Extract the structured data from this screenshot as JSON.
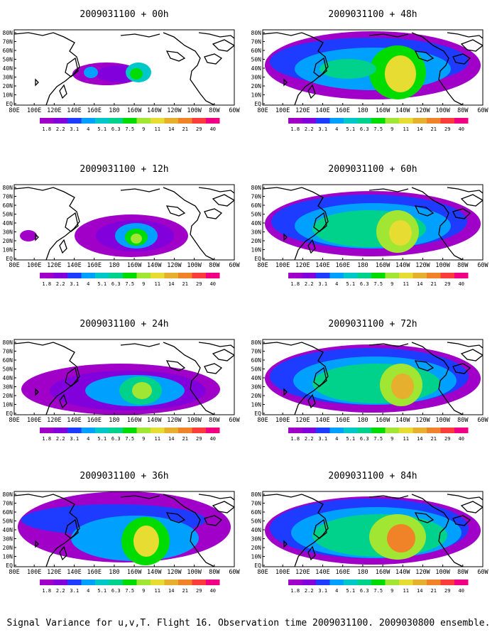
{
  "panels": [
    {
      "title": "2009031100 + 00h"
    },
    {
      "title": "2009031100 + 12h"
    },
    {
      "title": "2009031100 + 24h"
    },
    {
      "title": "2009031100 + 36h"
    },
    {
      "title": "2009031100 + 48h"
    },
    {
      "title": "2009031100 + 60h"
    },
    {
      "title": "2009031100 + 72h"
    },
    {
      "title": "2009031100 + 84h"
    }
  ],
  "lat_labels": [
    "80N",
    "70N",
    "60N",
    "50N",
    "40N",
    "30N",
    "20N",
    "10N",
    "EQ"
  ],
  "lon_labels": [
    "80E",
    "100E",
    "120E",
    "140E",
    "160E",
    "180",
    "160W",
    "140W",
    "120W",
    "100W",
    "80W",
    "60W"
  ],
  "legend": {
    "colors": [
      "#a000c8",
      "#8200dc",
      "#1e3cff",
      "#00a0ff",
      "#00c8c8",
      "#00d28c",
      "#00dc00",
      "#a0e632",
      "#e6dc32",
      "#e6af2d",
      "#f08228",
      "#fa3c3c",
      "#f00082"
    ],
    "labels": [
      "1.8",
      "2.2",
      "3.1",
      "4",
      "5.1",
      "6.3",
      "7.5",
      "9",
      "11",
      "14",
      "21",
      "29",
      "40"
    ]
  },
  "caption": "Signal Variance for u,v,T. Flight 16. Observation time 2009031100. 2009030800 ensemble."
}
